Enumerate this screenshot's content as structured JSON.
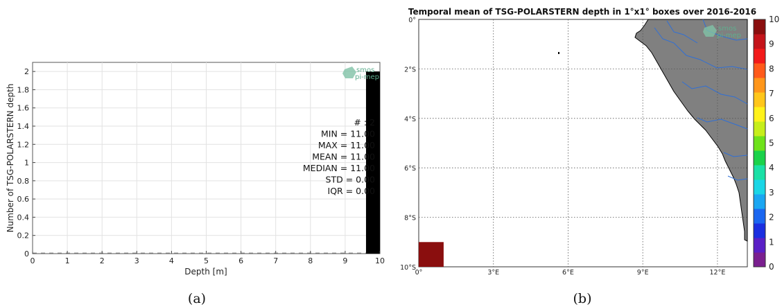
{
  "chart_data": [
    {
      "type": "bar",
      "xlabel": "Depth [m]",
      "ylabel": "Number of TSG-POLARSTERN depth",
      "xlim": [
        0,
        10
      ],
      "ylim": [
        0,
        2.1
      ],
      "xticks": [
        "0",
        "1",
        "2",
        "3",
        "4",
        "5",
        "6",
        "7",
        "8",
        "9",
        "10"
      ],
      "yticks": [
        "0",
        "0.2",
        "0.4",
        "0.6",
        "0.8",
        "1",
        "1.2",
        "1.4",
        "1.6",
        "1.8",
        "2"
      ],
      "bins": [
        {
          "x0": 9.6,
          "x1": 10,
          "value": 2
        }
      ],
      "grid": true,
      "stats": [
        {
          "label": "# : 2"
        },
        {
          "label": "MIN = 11.00"
        },
        {
          "label": "MAX =  11.00"
        },
        {
          "label": "MEAN = 11.00"
        },
        {
          "label": "MEDIAN = 11.00"
        },
        {
          "label": "STD = 0.00"
        },
        {
          "label": "IQR = 0.00"
        }
      ],
      "logo_lines": [
        "smos",
        "pi-mep"
      ],
      "caption": "(a)"
    },
    {
      "type": "heatmap",
      "title": "Temporal mean of TSG-POLARSTERN depth in 1°x1° boxes over 2016-2016",
      "lon_ticks": [
        "0°",
        "3°E",
        "6°E",
        "9°E",
        "12°E"
      ],
      "lat_ticks": [
        "0°",
        "2°S",
        "4°S",
        "6°S",
        "8°S",
        "10°S"
      ],
      "lon_range": [
        0,
        13.2
      ],
      "lat_range": [
        0,
        -10
      ],
      "cells": [
        {
          "lon0": 0,
          "lon1": 1,
          "lat0": -9,
          "lat1": -10,
          "value": 10
        }
      ],
      "colorbar": {
        "min": 0,
        "max": 10,
        "ticks": [
          "0",
          "1",
          "2",
          "3",
          "4",
          "5",
          "6",
          "7",
          "8",
          "9",
          "10"
        ],
        "colors": [
          "#7a1f8f",
          "#5a1fc6",
          "#1a2ee0",
          "#1a66f0",
          "#1aa6f2",
          "#1ad6e6",
          "#1ae0a6",
          "#1ad24a",
          "#6ee21a",
          "#c6ee1a",
          "#fff21a",
          "#ffc61a",
          "#ff961a",
          "#ff5a1a",
          "#f21a1a",
          "#c4141a",
          "#8a0e0e"
        ]
      },
      "land_color": "#808080",
      "logo_lines": [
        "smos",
        "pi-mep"
      ],
      "caption": "(b)"
    }
  ]
}
